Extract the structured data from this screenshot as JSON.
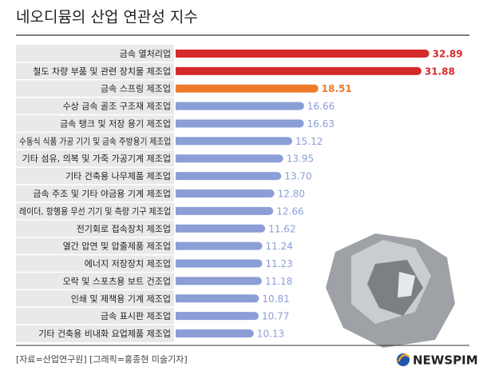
{
  "chart_data": {
    "type": "bar",
    "orientation": "horizontal",
    "title": "네오디뮴의 산업 연관성 지수",
    "categories": [
      "금속 열처리업",
      "철도 차량 부품 및 관련 장치물 제조업",
      "금속 스프링 제조업",
      "수상 금속 골조 구조재 제조업",
      "금속 탱크 및 저장 용기 제조업",
      "수동식 식품 가공 기기 및 금속 주방용기 제조업",
      "기타 섬유, 의복 및 가죽 가공기계 제조업",
      "기타 건축용 나무제품 제조업",
      "금속 주조 및 기타 야금용 기계 제조업",
      "레이더, 항행용 무선 기기 및 측량 기구 제조업",
      "전기회로 접속장치 제조업",
      "열간 압연 및 압출제품 제조업",
      "에너지 저장장치 제조업",
      "오락 및 스포츠용 보트 건조업",
      "인쇄 및 제책용 기계 제조업",
      "금속 표시판 제조업",
      "기타 건축용 비내화 요업제품 제조업"
    ],
    "values": [
      32.89,
      31.88,
      18.51,
      16.66,
      16.63,
      15.12,
      13.95,
      13.7,
      12.8,
      12.66,
      11.62,
      11.24,
      11.23,
      11.18,
      10.81,
      10.77,
      10.13
    ],
    "value_labels": [
      "32.89",
      "31.88",
      "18.51",
      "16.66",
      "16.63",
      "15.12",
      "13.95",
      "13.70",
      "12.80",
      "12.66",
      "11.62",
      "11.24",
      "11.23",
      "11.18",
      "10.81",
      "10.77",
      "10.13"
    ],
    "colors": [
      "#d42a2a",
      "#d42a2a",
      "#ee7a2c",
      "#8b9ed6",
      "#8b9ed6",
      "#8b9ed6",
      "#8b9ed6",
      "#8b9ed6",
      "#8b9ed6",
      "#8b9ed6",
      "#8b9ed6",
      "#8b9ed6",
      "#8b9ed6",
      "#8b9ed6",
      "#8b9ed6",
      "#8b9ed6",
      "#8b9ed6"
    ],
    "xlim": [
      0,
      38
    ],
    "source": "[자료=산업연구원] [그래픽=홍종현 미술기자]",
    "logo": "NEWSPIM"
  }
}
